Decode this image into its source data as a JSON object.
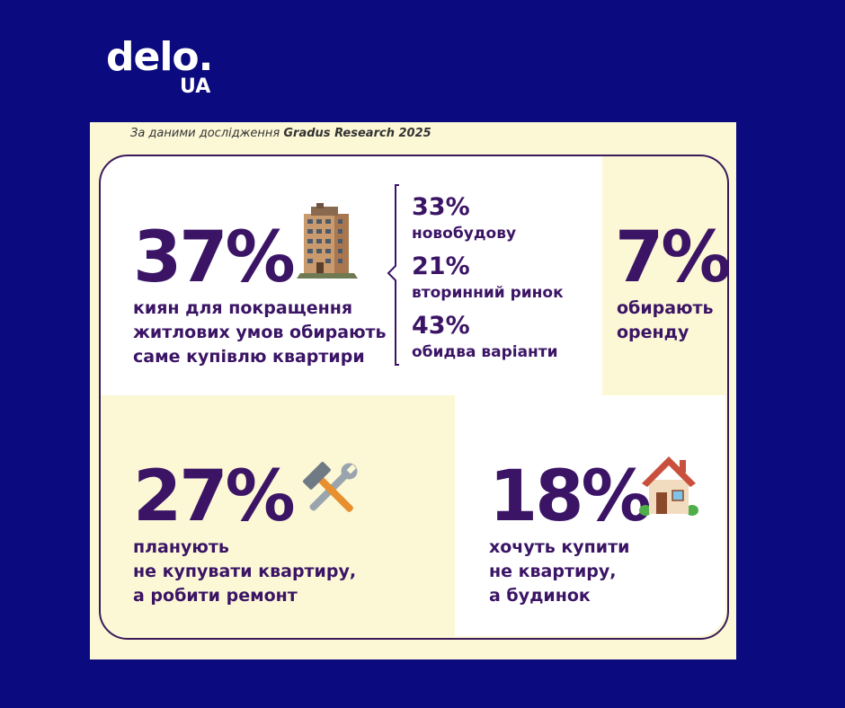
{
  "logo": {
    "main": "delo.",
    "sub": "UA"
  },
  "source": {
    "prefix": "За даними дослідження ",
    "name": "Gradus Research 2025"
  },
  "buy": {
    "percent": "37%",
    "lines": [
      "киян для покращення",
      "житлових умов обирають",
      "саме купівлю квартири"
    ],
    "icon": "apartment-building-icon"
  },
  "split": [
    {
      "percent": "33%",
      "label": "новобудову"
    },
    {
      "percent": "21%",
      "label": "вторинний ринок"
    },
    {
      "percent": "43%",
      "label": "обидва варіанти"
    }
  ],
  "rent": {
    "percent": "7%",
    "lines": [
      "обирають",
      "оренду"
    ]
  },
  "repair": {
    "percent": "27%",
    "lines": [
      "планують",
      "не купувати квартиру,",
      "а робити ремонт"
    ],
    "icon": "hammer-wrench-icon"
  },
  "house": {
    "percent": "18%",
    "lines": [
      "хочуть купити",
      "не квартиру,",
      "а будинок"
    ],
    "icon": "house-icon"
  },
  "colors": {
    "background": "#0b0a7e",
    "card": "#fcf8d6",
    "accent": "#3b1465",
    "white": "#ffffff"
  }
}
